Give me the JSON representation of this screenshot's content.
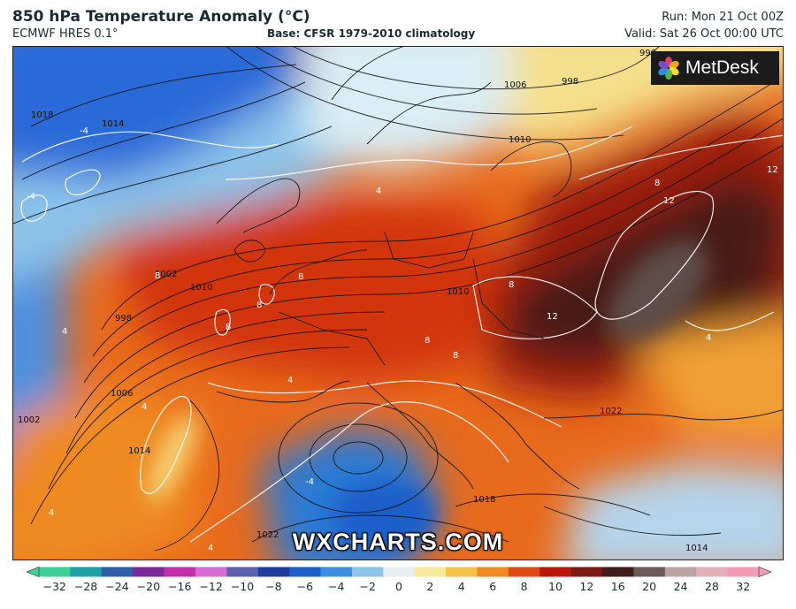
{
  "header": {
    "title": "850 hPa Temperature Anomaly (°C)",
    "model": "ECMWF HRES 0.1°",
    "base": "Base: CFSR 1979-2010 climatology",
    "run": "Run: Mon 21 Oct 00Z",
    "valid": "Valid: Sat 26 Oct 00:00 UTC"
  },
  "brand": {
    "name": "MetDesk",
    "icon": "metdesk-flower-icon"
  },
  "watermark": "WXCHARTS.COM",
  "colorbar": {
    "ticks": [
      "−32",
      "−28",
      "−24",
      "−20",
      "−16",
      "−12",
      "−10",
      "−8",
      "−6",
      "−4",
      "−2",
      "0",
      "2",
      "4",
      "6",
      "8",
      "10",
      "12",
      "16",
      "20",
      "24",
      "28",
      "32"
    ],
    "colors": [
      "#3fcf9a",
      "#1fa0a4",
      "#2e5fa8",
      "#7a2a9a",
      "#c42fa8",
      "#d76bd4",
      "#5a62b0",
      "#1f3c9c",
      "#1e5fc9",
      "#3b8fe0",
      "#8ec3ea",
      "#e6eef0",
      "#f6e99a",
      "#f7c24a",
      "#f08a22",
      "#e04a16",
      "#b8170e",
      "#7a1a12",
      "#3e1d1a",
      "#6b5b58",
      "#b9a3a3",
      "#e3b0b8",
      "#f29cb8"
    ]
  },
  "map_labels": {
    "isotherms": [
      "4",
      "-4",
      "4",
      "8",
      "12",
      "12",
      "8",
      "8",
      "8",
      "8",
      "8",
      "12",
      "8",
      "8",
      "4",
      "4",
      "4",
      "-4",
      "4",
      "-4",
      "4",
      "4"
    ],
    "isobars": [
      "1018",
      "1014",
      "1002",
      "998",
      "1006",
      "1010",
      "1014",
      "1002",
      "1010",
      "998",
      "990",
      "1006",
      "1010",
      "1014",
      "1018",
      "1022",
      "1022",
      "1018",
      "1014"
    ]
  }
}
